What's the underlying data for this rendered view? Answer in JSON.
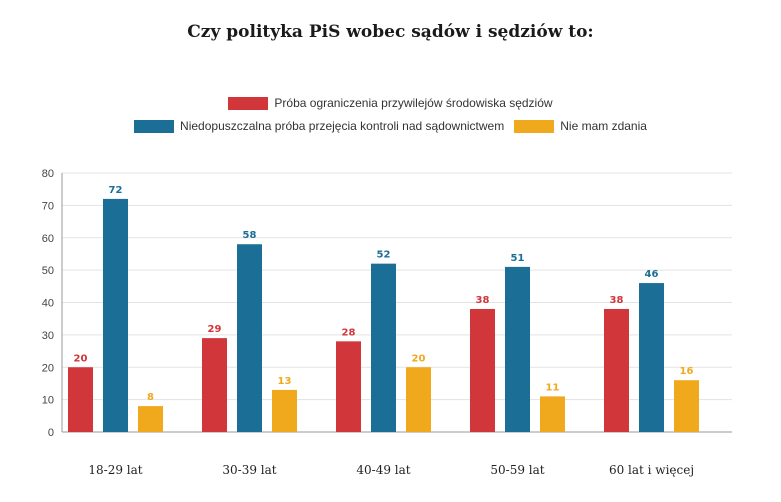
{
  "chart_data": {
    "type": "bar",
    "title": "Czy polityka PiS wobec sądów i sędziów to:",
    "categories": [
      "18-29 lat",
      "30-39 lat",
      "40-49 lat",
      "50-59 lat",
      "60 lat i więcej"
    ],
    "series": [
      {
        "name": "Próba ograniczenia przywilejów środowiska sędziów",
        "color": "#d0363a",
        "values": [
          20,
          29,
          28,
          38,
          38
        ]
      },
      {
        "name": "Niedopuszczalna próba przejęcia kontroli nad sądownictwem",
        "color": "#1b6f96",
        "values": [
          72,
          58,
          52,
          51,
          46
        ]
      },
      {
        "name": "Nie mam zdania",
        "color": "#f0a91d",
        "values": [
          8,
          13,
          20,
          11,
          16
        ]
      }
    ],
    "yticks": [
      0,
      10,
      20,
      30,
      40,
      50,
      60,
      70,
      80
    ],
    "ylim": [
      0,
      80
    ],
    "grid": true,
    "legend_position": "top"
  }
}
